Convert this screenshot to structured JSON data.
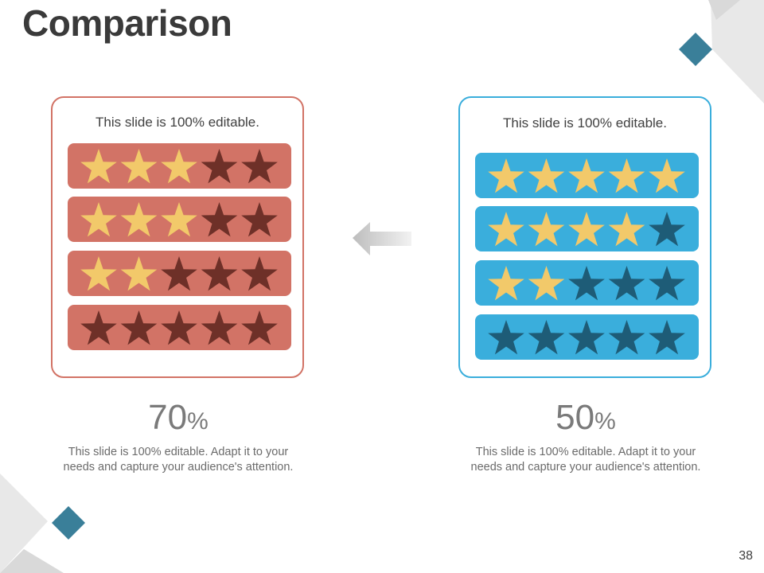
{
  "slide": {
    "title": "Comparison",
    "page_number": "38"
  },
  "colors": {
    "left_accent": "#d27366",
    "right_accent": "#3aaedc",
    "star_filled": "#f2c96a",
    "left_star_empty": "#6e3028",
    "right_star_empty": "#1e5c77",
    "diamond": "#3a7f99"
  },
  "left_card": {
    "label": "This slide is 100% editable.",
    "ratings": [
      3,
      3,
      2,
      0
    ],
    "percent_value": "70",
    "percent_symbol": "%",
    "description_line1": "This slide is 100% editable. Adapt it to your",
    "description_line2": "needs and capture your audience's attention."
  },
  "right_card": {
    "label": "This slide is 100% editable.",
    "ratings": [
      5,
      4,
      2,
      0
    ],
    "percent_value": "50",
    "percent_symbol": "%",
    "description_line1": "This slide is 100% editable. Adapt it to your",
    "description_line2": "needs and capture your audience's attention."
  },
  "icons": {
    "arrow": "arrow-left-icon",
    "star": "star-icon",
    "diamond": "diamond-icon"
  }
}
